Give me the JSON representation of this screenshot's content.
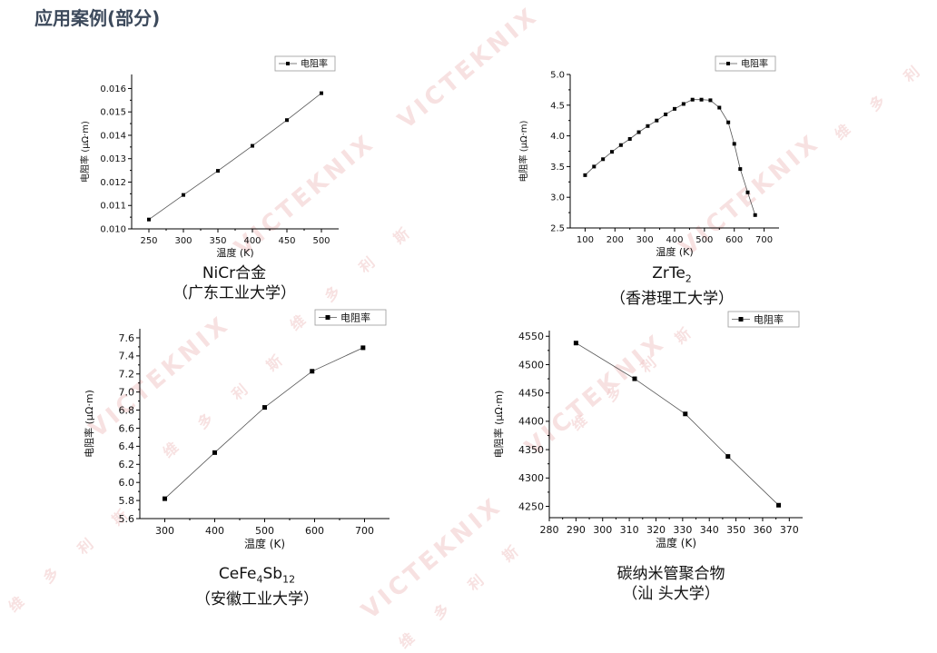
{
  "page": {
    "title": "应用案例(部分)"
  },
  "watermark": {
    "brand": "VICTEKNIX",
    "chars": "维 多 利 斯"
  },
  "chart_data": [
    {
      "type": "line",
      "legend": "电阻率",
      "legend_position": "top-right",
      "xlabel": "温度 (K)",
      "ylabel": "电阻率 (μΩ·m)",
      "xlim": [
        225,
        525
      ],
      "ylim": [
        0.01,
        0.0166
      ],
      "xticks": [
        250,
        300,
        350,
        400,
        450,
        500
      ],
      "yticks": [
        0.01,
        0.011,
        0.012,
        0.013,
        0.014,
        0.015,
        0.016
      ],
      "ydecimals": 3,
      "x": [
        250,
        300,
        350,
        400,
        450,
        500
      ],
      "y": [
        0.0104,
        0.01145,
        0.01248,
        0.01355,
        0.01465,
        0.0158
      ],
      "caption_name": "NiCr合金",
      "caption_inst": "（广东工业大学）"
    },
    {
      "type": "line",
      "legend": "电阻率",
      "legend_position": "top-right",
      "xlabel": "温度 (K)",
      "ylabel": "电阻率 (μΩ·m)",
      "xlim": [
        50,
        750
      ],
      "ylim": [
        2.5,
        5.0
      ],
      "xticks": [
        100,
        200,
        300,
        400,
        500,
        600,
        700
      ],
      "yticks": [
        2.5,
        3.0,
        3.5,
        4.0,
        4.5,
        5.0
      ],
      "ydecimals": 1,
      "x": [
        100,
        130,
        160,
        190,
        220,
        250,
        280,
        310,
        340,
        370,
        400,
        430,
        460,
        490,
        520,
        550,
        580,
        600,
        620,
        645,
        670
      ],
      "y": [
        3.36,
        3.5,
        3.62,
        3.74,
        3.85,
        3.95,
        4.06,
        4.16,
        4.25,
        4.35,
        4.44,
        4.52,
        4.59,
        4.59,
        4.58,
        4.46,
        4.22,
        3.87,
        3.46,
        3.08,
        2.71
      ],
      "caption_name": "ZrTe",
      "caption_sub": "2",
      "caption_inst": "（香港理工大学）"
    },
    {
      "type": "line",
      "legend": "电阻率",
      "legend_position": "top-right",
      "xlabel": "温度 (K)",
      "ylabel": "电阻率 (μΩ·m)",
      "xlim": [
        250,
        750
      ],
      "ylim": [
        5.6,
        7.7
      ],
      "xticks": [
        300,
        400,
        500,
        600,
        700
      ],
      "yticks": [
        5.6,
        5.8,
        6.0,
        6.2,
        6.4,
        6.6,
        6.8,
        7.0,
        7.2,
        7.4,
        7.6
      ],
      "ydecimals": 1,
      "x": [
        300,
        400,
        500,
        595,
        697
      ],
      "y": [
        5.82,
        6.33,
        6.83,
        7.23,
        7.49
      ],
      "caption_name": "CeFe",
      "caption_sub": "4",
      "caption_name2": "Sb",
      "caption_sub2": "12",
      "caption_inst": "（安徽工业大学）"
    },
    {
      "type": "line",
      "legend": "电阻率",
      "legend_position": "top-right",
      "xlabel": "温度 (K)",
      "ylabel": "电阻率 (μΩ·m)",
      "xlim": [
        280,
        375
      ],
      "ylim": [
        4230,
        4560
      ],
      "xticks": [
        280,
        290,
        300,
        310,
        320,
        330,
        340,
        350,
        360,
        370
      ],
      "yticks": [
        4250,
        4300,
        4350,
        4400,
        4450,
        4500,
        4550
      ],
      "ydecimals": 0,
      "x": [
        290,
        312,
        331,
        347,
        366
      ],
      "y": [
        4538,
        4475,
        4413,
        4338,
        4252
      ],
      "caption_name": "碳纳米管聚合物",
      "caption_inst": "（汕 头大学）"
    }
  ]
}
